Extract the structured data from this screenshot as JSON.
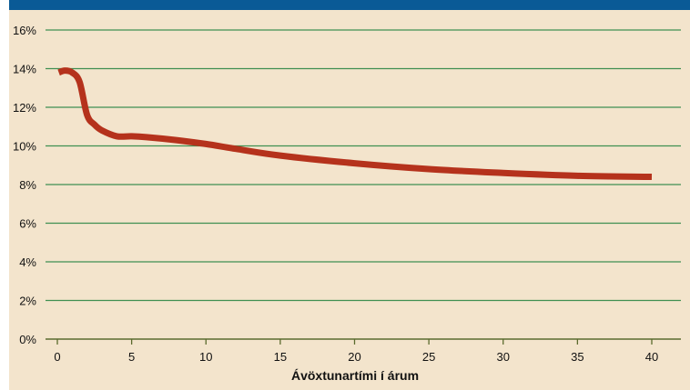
{
  "colors": {
    "header": "#0a5a96",
    "background": "#f3e4cc",
    "gridline": "#3f8f52",
    "axis": "#5b6b2e",
    "line": "#b5321c",
    "text": "#111111"
  },
  "chart_data": {
    "type": "line",
    "xlabel": "Ávöxtunartími í árum",
    "ylabel": "",
    "xlim": [
      -2,
      42
    ],
    "ylim": [
      0,
      16
    ],
    "x_ticks": [
      0,
      5,
      10,
      15,
      20,
      25,
      30,
      35,
      40
    ],
    "y_ticks": [
      0,
      2,
      4,
      6,
      8,
      10,
      12,
      14,
      16
    ],
    "y_tick_labels": [
      "0%",
      "2%",
      "4%",
      "6%",
      "8%",
      "10%",
      "12%",
      "14%",
      "16%"
    ],
    "grid": true,
    "series": [
      {
        "x": [
          0.1,
          0.5,
          1,
          1.5,
          2,
          2.5,
          3,
          4,
          5,
          6,
          8,
          10,
          12,
          15,
          20,
          25,
          30,
          35,
          40
        ],
        "y": [
          13.8,
          13.9,
          13.8,
          13.3,
          11.6,
          11.1,
          10.8,
          10.5,
          10.5,
          10.45,
          10.3,
          10.1,
          9.85,
          9.5,
          9.1,
          8.8,
          8.6,
          8.45,
          8.4
        ]
      }
    ]
  }
}
